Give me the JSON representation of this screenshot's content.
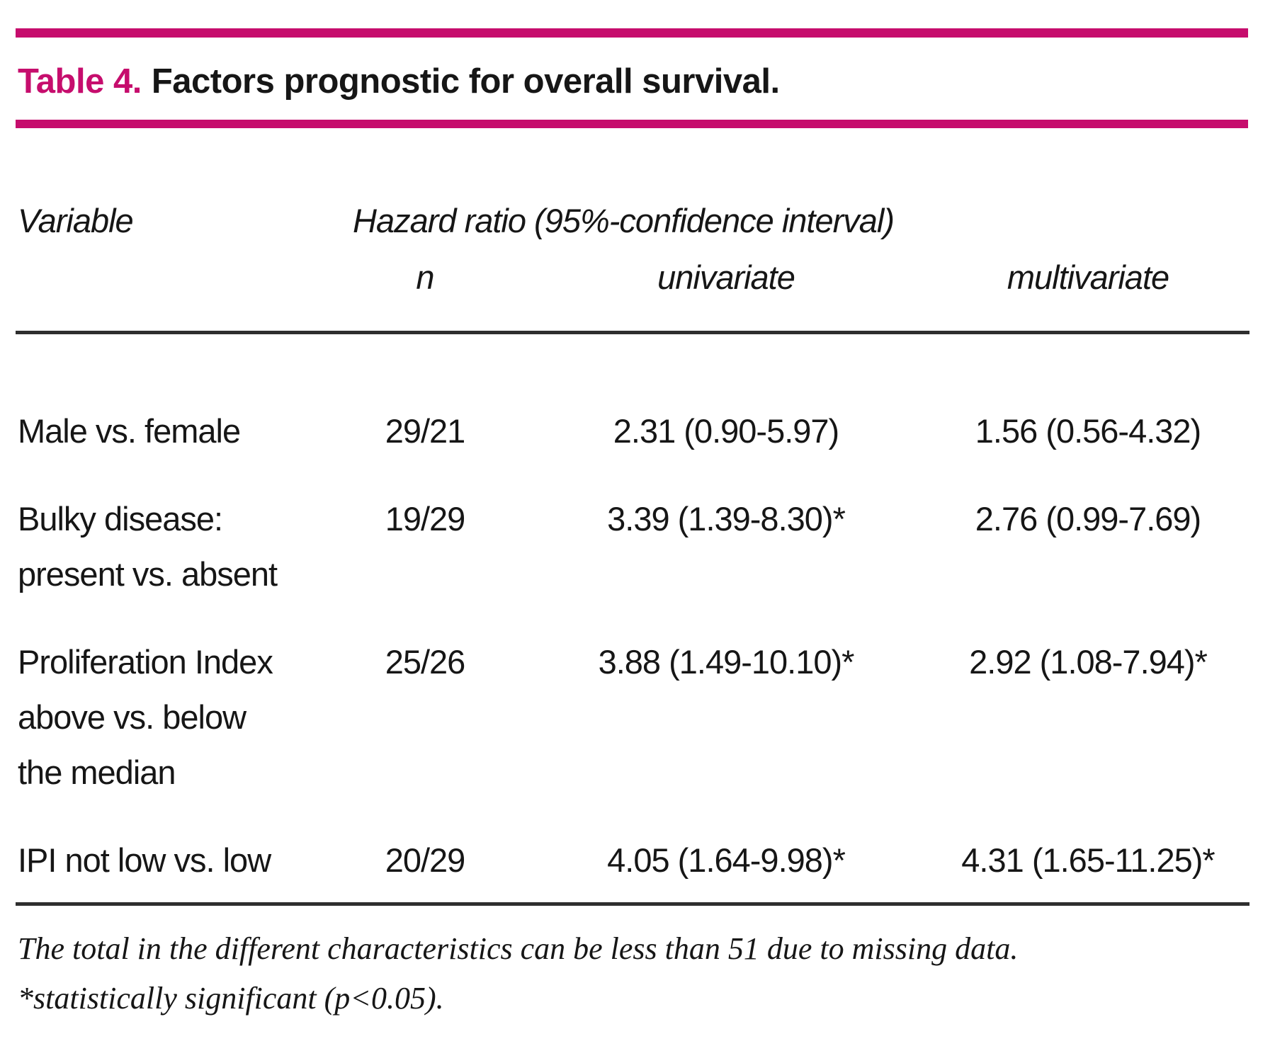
{
  "accent_color": "#c60d6d",
  "title": {
    "label": "Table 4.",
    "text": "Factors prognostic for overall survival."
  },
  "table": {
    "col1_header": "Variable",
    "group_header": "Hazard ratio (95%-confidence interval)",
    "sub_headers": {
      "n": "n",
      "univariate": "univariate",
      "multivariate": "multivariate"
    },
    "rows": [
      {
        "variable_lines": [
          "Male vs. female"
        ],
        "n": "29/21",
        "univariate": "2.31 (0.90-5.97)",
        "multivariate": "1.56 (0.56-4.32)"
      },
      {
        "variable_lines": [
          "Bulky disease:",
          "present vs. absent"
        ],
        "n": "19/29",
        "univariate": "3.39 (1.39-8.30)*",
        "multivariate": "2.76 (0.99-7.69)"
      },
      {
        "variable_lines": [
          "Proliferation Index",
          "above vs. below",
          "the median"
        ],
        "n": "25/26",
        "univariate": "3.88 (1.49-10.10)*",
        "multivariate": "2.92 (1.08-7.94)*"
      },
      {
        "variable_lines": [
          "IPI not low vs. low"
        ],
        "n": "20/29",
        "univariate": "4.05 (1.64-9.98)*",
        "multivariate": "4.31 (1.65-11.25)*"
      }
    ]
  },
  "footnotes": [
    "The total in the different characteristics can be less than 51 due to missing data.",
    "*statistically significant (p<0.05)."
  ]
}
